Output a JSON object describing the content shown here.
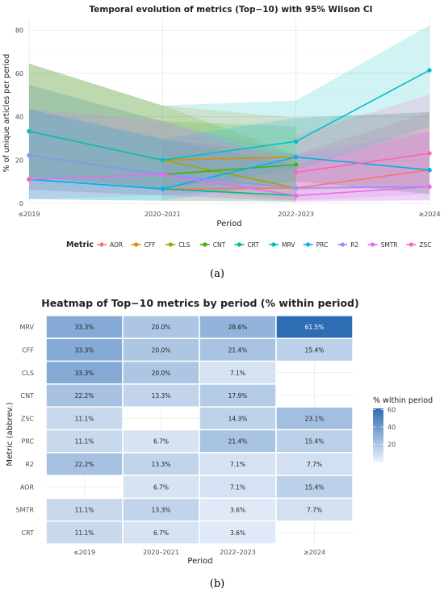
{
  "chart_data": [
    {
      "type": "line",
      "title": "Temporal evolution of metrics (Top−10) with 95% Wilson CI",
      "xlabel": "Period",
      "ylabel": "% of unique articles per period",
      "categories": [
        "≤2019",
        "2020–2021",
        "2022–2023",
        "≥2024"
      ],
      "ylim": [
        0,
        85
      ],
      "yticks": [
        0,
        20,
        40,
        60,
        80
      ],
      "grid": true,
      "legend_position": "bottom",
      "legend_title": "Metric",
      "series": [
        {
          "name": "AOR",
          "color": "#F8766D",
          "values": [
            null,
            6.7,
            7.1,
            15.4
          ],
          "ci_lower": [
            null,
            1.2,
            1.3,
            4.3
          ],
          "ci_upper": [
            null,
            29.8,
            22.6,
            42.2
          ]
        },
        {
          "name": "CFF",
          "color": "#D89000",
          "values": [
            33.3,
            20.0,
            21.4,
            15.4
          ],
          "ci_lower": [
            12.1,
            7.0,
            10.2,
            4.3
          ],
          "ci_upper": [
            64.6,
            45.2,
            39.5,
            42.2
          ]
        },
        {
          "name": "CLS",
          "color": "#A3A500",
          "values": [
            33.3,
            20.0,
            7.1,
            null
          ],
          "ci_lower": [
            12.1,
            7.0,
            1.3,
            null
          ],
          "ci_upper": [
            64.6,
            45.2,
            22.6,
            null
          ]
        },
        {
          "name": "CNT",
          "color": "#39B600",
          "values": [
            22.2,
            13.3,
            17.9,
            null
          ],
          "ci_lower": [
            6.3,
            3.7,
            7.9,
            null
          ],
          "ci_upper": [
            54.7,
            37.9,
            35.6,
            null
          ]
        },
        {
          "name": "CRT",
          "color": "#00BF7D",
          "values": [
            11.1,
            6.7,
            3.6,
            null
          ],
          "ci_lower": [
            2.0,
            1.2,
            0.6,
            null
          ],
          "ci_upper": [
            43.5,
            29.8,
            17.7,
            null
          ]
        },
        {
          "name": "MRV",
          "color": "#00BFC4",
          "values": [
            33.3,
            20.0,
            28.6,
            61.5
          ],
          "ci_lower": [
            12.1,
            7.0,
            15.3,
            35.5
          ],
          "ci_upper": [
            64.6,
            45.2,
            47.5,
            82.3
          ]
        },
        {
          "name": "PRC",
          "color": "#00B0F6",
          "values": [
            11.1,
            6.7,
            21.4,
            15.4
          ],
          "ci_lower": [
            2.0,
            1.2,
            10.2,
            4.3
          ],
          "ci_upper": [
            43.5,
            29.8,
            39.5,
            42.2
          ]
        },
        {
          "name": "R2",
          "color": "#9590FF",
          "values": [
            22.2,
            13.3,
            7.1,
            7.7
          ],
          "ci_lower": [
            6.3,
            3.7,
            1.3,
            1.4
          ],
          "ci_upper": [
            54.7,
            37.9,
            22.6,
            33.3
          ]
        },
        {
          "name": "SMTR",
          "color": "#E76BF3",
          "values": [
            11.1,
            13.3,
            3.6,
            7.7
          ],
          "ci_lower": [
            2.0,
            3.7,
            0.6,
            1.4
          ],
          "ci_upper": [
            43.5,
            37.9,
            17.7,
            33.3
          ]
        },
        {
          "name": "ZSC",
          "color": "#FF62BC",
          "values": [
            11.1,
            null,
            14.3,
            23.1
          ],
          "ci_lower": [
            2.0,
            null,
            5.7,
            8.2
          ],
          "ci_upper": [
            43.5,
            null,
            31.5,
            50.3
          ]
        }
      ]
    },
    {
      "type": "heatmap",
      "title": "Heatmap of Top−10 metrics by period (% within period)",
      "xlabel": "Period",
      "ylabel": "Metric (abbrev.)",
      "x_categories": [
        "≤2019",
        "2020–2021",
        "2022–2023",
        "≥2024"
      ],
      "y_categories": [
        "MRV",
        "CFF",
        "CLS",
        "CNT",
        "ZSC",
        "PRC",
        "R2",
        "AOR",
        "SMTR",
        "CRT"
      ],
      "values": [
        [
          33.3,
          20.0,
          28.6,
          61.5
        ],
        [
          33.3,
          20.0,
          21.4,
          15.4
        ],
        [
          33.3,
          20.0,
          7.1,
          null
        ],
        [
          22.2,
          13.3,
          17.9,
          null
        ],
        [
          11.1,
          null,
          14.3,
          23.1
        ],
        [
          11.1,
          6.7,
          21.4,
          15.4
        ],
        [
          22.2,
          13.3,
          7.1,
          7.7
        ],
        [
          null,
          6.7,
          7.1,
          15.4
        ],
        [
          11.1,
          13.3,
          3.6,
          7.7
        ],
        [
          11.1,
          6.7,
          3.6,
          null
        ]
      ],
      "value_suffix": "%",
      "colorbar": {
        "title": "% within period",
        "ticks": [
          20,
          40,
          60
        ],
        "min": 0,
        "max": 61.5,
        "low_color": "#e3ecf8",
        "high_color": "#2e6db4"
      }
    }
  ],
  "captions": {
    "a": "(a)",
    "b": "(b)"
  }
}
